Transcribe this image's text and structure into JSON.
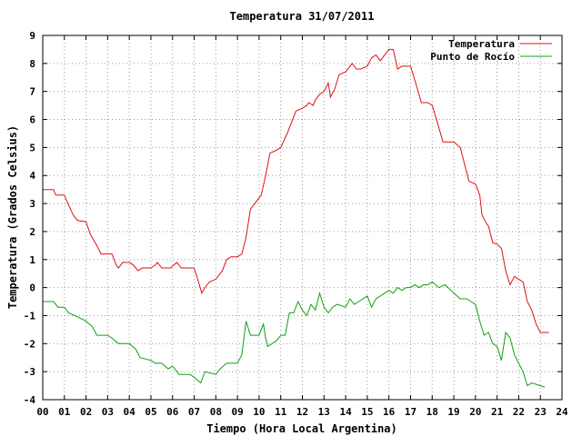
{
  "chart_data": {
    "type": "line",
    "title": "Temperatura 31/07/2011",
    "xlabel": "Tiempo (Hora Local Argentina)",
    "ylabel": "Temperatura (Grados Celsius)",
    "xlim": [
      0,
      24
    ],
    "ylim": [
      -4,
      9
    ],
    "x_ticks": [
      "00",
      "01",
      "02",
      "03",
      "04",
      "05",
      "06",
      "07",
      "08",
      "09",
      "10",
      "11",
      "12",
      "13",
      "14",
      "15",
      "16",
      "17",
      "18",
      "19",
      "20",
      "21",
      "22",
      "23",
      "24"
    ],
    "y_ticks": [
      "-4",
      "-3",
      "-2",
      "-1",
      "0",
      "1",
      "2",
      "3",
      "4",
      "5",
      "6",
      "7",
      "8",
      "9"
    ],
    "grid": true,
    "legend_position": "top-right",
    "series": [
      {
        "name": "Temperatura",
        "color": "#e01010",
        "points": [
          [
            0.0,
            3.5
          ],
          [
            0.5,
            3.5
          ],
          [
            0.6,
            3.3
          ],
          [
            1.0,
            3.3
          ],
          [
            1.05,
            3.2
          ],
          [
            1.4,
            2.6
          ],
          [
            1.6,
            2.4
          ],
          [
            2.0,
            2.35
          ],
          [
            2.2,
            1.9
          ],
          [
            2.5,
            1.5
          ],
          [
            2.7,
            1.2
          ],
          [
            3.0,
            1.2
          ],
          [
            3.2,
            1.2
          ],
          [
            3.4,
            0.8
          ],
          [
            3.5,
            0.7
          ],
          [
            3.7,
            0.9
          ],
          [
            4.0,
            0.9
          ],
          [
            4.2,
            0.8
          ],
          [
            4.4,
            0.6
          ],
          [
            4.6,
            0.7
          ],
          [
            5.0,
            0.7
          ],
          [
            5.2,
            0.8
          ],
          [
            5.3,
            0.9
          ],
          [
            5.5,
            0.7
          ],
          [
            5.9,
            0.7
          ],
          [
            6.2,
            0.9
          ],
          [
            6.4,
            0.7
          ],
          [
            6.8,
            0.7
          ],
          [
            7.0,
            0.7
          ],
          [
            7.2,
            0.2
          ],
          [
            7.35,
            -0.2
          ],
          [
            7.5,
            0.0
          ],
          [
            7.7,
            0.2
          ],
          [
            8.0,
            0.3
          ],
          [
            8.3,
            0.6
          ],
          [
            8.5,
            1.0
          ],
          [
            8.7,
            1.1
          ],
          [
            9.0,
            1.1
          ],
          [
            9.2,
            1.2
          ],
          [
            9.4,
            1.8
          ],
          [
            9.6,
            2.8
          ],
          [
            9.8,
            3.0
          ],
          [
            10.0,
            3.2
          ],
          [
            10.1,
            3.3
          ],
          [
            10.3,
            4.0
          ],
          [
            10.5,
            4.8
          ],
          [
            10.8,
            4.9
          ],
          [
            11.0,
            5.0
          ],
          [
            11.3,
            5.5
          ],
          [
            11.5,
            5.9
          ],
          [
            11.7,
            6.3
          ],
          [
            12.0,
            6.4
          ],
          [
            12.2,
            6.5
          ],
          [
            12.3,
            6.6
          ],
          [
            12.5,
            6.5
          ],
          [
            12.6,
            6.7
          ],
          [
            12.8,
            6.9
          ],
          [
            13.0,
            7.0
          ],
          [
            13.2,
            7.3
          ],
          [
            13.3,
            6.8
          ],
          [
            13.5,
            7.1
          ],
          [
            13.7,
            7.6
          ],
          [
            14.0,
            7.7
          ],
          [
            14.2,
            7.9
          ],
          [
            14.3,
            8.0
          ],
          [
            14.5,
            7.8
          ],
          [
            14.7,
            7.8
          ],
          [
            15.0,
            7.9
          ],
          [
            15.2,
            8.2
          ],
          [
            15.4,
            8.3
          ],
          [
            15.6,
            8.1
          ],
          [
            15.8,
            8.3
          ],
          [
            16.0,
            8.5
          ],
          [
            16.2,
            8.5
          ],
          [
            16.4,
            7.8
          ],
          [
            16.6,
            7.9
          ],
          [
            17.0,
            7.9
          ],
          [
            17.2,
            7.4
          ],
          [
            17.5,
            6.6
          ],
          [
            17.8,
            6.6
          ],
          [
            18.0,
            6.5
          ],
          [
            18.2,
            6.0
          ],
          [
            18.5,
            5.2
          ],
          [
            18.8,
            5.2
          ],
          [
            19.0,
            5.2
          ],
          [
            19.3,
            5.0
          ],
          [
            19.5,
            4.4
          ],
          [
            19.7,
            3.8
          ],
          [
            20.0,
            3.7
          ],
          [
            20.2,
            3.3
          ],
          [
            20.3,
            2.6
          ],
          [
            20.5,
            2.3
          ],
          [
            20.6,
            2.2
          ],
          [
            20.8,
            1.6
          ],
          [
            21.0,
            1.55
          ],
          [
            21.2,
            1.4
          ],
          [
            21.4,
            0.6
          ],
          [
            21.6,
            0.1
          ],
          [
            21.8,
            0.4
          ],
          [
            22.0,
            0.3
          ],
          [
            22.2,
            0.2
          ],
          [
            22.4,
            -0.5
          ],
          [
            22.6,
            -0.8
          ],
          [
            22.8,
            -1.3
          ],
          [
            23.0,
            -1.6
          ],
          [
            23.3,
            -1.6
          ],
          [
            23.4,
            -1.6
          ]
        ]
      },
      {
        "name": "Punto de Rocío",
        "color": "#10a010",
        "points": [
          [
            0.0,
            -0.5
          ],
          [
            0.5,
            -0.5
          ],
          [
            0.7,
            -0.7
          ],
          [
            1.0,
            -0.7
          ],
          [
            1.2,
            -0.9
          ],
          [
            1.5,
            -1.0
          ],
          [
            2.0,
            -1.2
          ],
          [
            2.3,
            -1.4
          ],
          [
            2.5,
            -1.7
          ],
          [
            3.0,
            -1.7
          ],
          [
            3.2,
            -1.8
          ],
          [
            3.5,
            -2.0
          ],
          [
            4.0,
            -2.0
          ],
          [
            4.3,
            -2.2
          ],
          [
            4.5,
            -2.5
          ],
          [
            5.0,
            -2.6
          ],
          [
            5.2,
            -2.7
          ],
          [
            5.5,
            -2.7
          ],
          [
            5.8,
            -2.9
          ],
          [
            6.0,
            -2.8
          ],
          [
            6.3,
            -3.1
          ],
          [
            6.6,
            -3.1
          ],
          [
            6.8,
            -3.1
          ],
          [
            7.0,
            -3.2
          ],
          [
            7.3,
            -3.4
          ],
          [
            7.5,
            -3.0
          ],
          [
            8.0,
            -3.1
          ],
          [
            8.2,
            -2.9
          ],
          [
            8.5,
            -2.7
          ],
          [
            9.0,
            -2.7
          ],
          [
            9.2,
            -2.4
          ],
          [
            9.4,
            -1.2
          ],
          [
            9.6,
            -1.7
          ],
          [
            10.0,
            -1.7
          ],
          [
            10.2,
            -1.3
          ],
          [
            10.3,
            -1.8
          ],
          [
            10.4,
            -2.1
          ],
          [
            10.6,
            -2.0
          ],
          [
            10.8,
            -1.9
          ],
          [
            11.0,
            -1.7
          ],
          [
            11.2,
            -1.7
          ],
          [
            11.4,
            -0.9
          ],
          [
            11.6,
            -0.9
          ],
          [
            11.8,
            -0.5
          ],
          [
            12.0,
            -0.8
          ],
          [
            12.2,
            -1.0
          ],
          [
            12.4,
            -0.6
          ],
          [
            12.6,
            -0.8
          ],
          [
            12.8,
            -0.2
          ],
          [
            13.0,
            -0.7
          ],
          [
            13.2,
            -0.9
          ],
          [
            13.4,
            -0.7
          ],
          [
            13.6,
            -0.6
          ],
          [
            14.0,
            -0.7
          ],
          [
            14.2,
            -0.4
          ],
          [
            14.4,
            -0.6
          ],
          [
            14.6,
            -0.5
          ],
          [
            14.8,
            -0.4
          ],
          [
            15.0,
            -0.3
          ],
          [
            15.2,
            -0.7
          ],
          [
            15.4,
            -0.4
          ],
          [
            15.6,
            -0.3
          ],
          [
            15.8,
            -0.2
          ],
          [
            16.0,
            -0.1
          ],
          [
            16.2,
            -0.2
          ],
          [
            16.4,
            0.0
          ],
          [
            16.6,
            -0.1
          ],
          [
            16.8,
            0.0
          ],
          [
            17.0,
            0.0
          ],
          [
            17.2,
            0.1
          ],
          [
            17.4,
            0.0
          ],
          [
            17.6,
            0.1
          ],
          [
            17.8,
            0.1
          ],
          [
            18.0,
            0.2
          ],
          [
            18.3,
            0.0
          ],
          [
            18.6,
            0.1
          ],
          [
            19.0,
            -0.2
          ],
          [
            19.3,
            -0.4
          ],
          [
            19.6,
            -0.4
          ],
          [
            19.8,
            -0.5
          ],
          [
            20.0,
            -0.6
          ],
          [
            20.2,
            -1.2
          ],
          [
            20.4,
            -1.7
          ],
          [
            20.6,
            -1.6
          ],
          [
            20.8,
            -2.0
          ],
          [
            21.0,
            -2.1
          ],
          [
            21.2,
            -2.6
          ],
          [
            21.4,
            -1.6
          ],
          [
            21.6,
            -1.8
          ],
          [
            21.8,
            -2.4
          ],
          [
            22.0,
            -2.7
          ],
          [
            22.2,
            -3.0
          ],
          [
            22.4,
            -3.5
          ],
          [
            22.6,
            -3.4
          ],
          [
            23.0,
            -3.5
          ],
          [
            23.2,
            -3.55
          ]
        ]
      }
    ]
  }
}
